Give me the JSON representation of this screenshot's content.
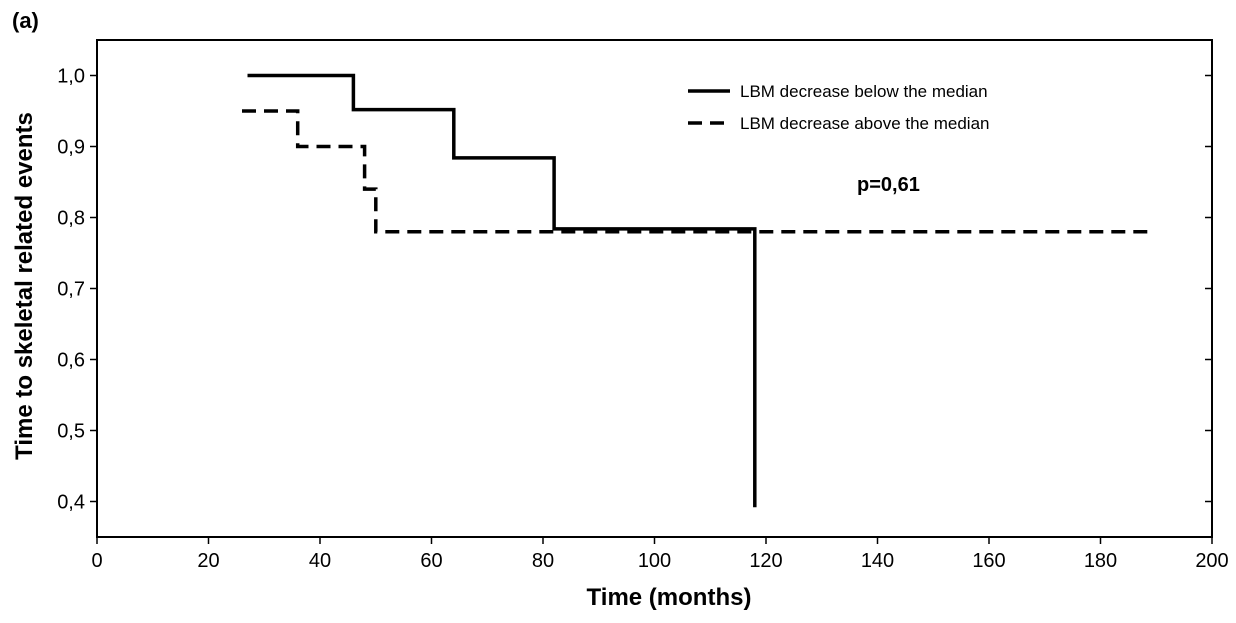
{
  "panel_label": "(a)",
  "chart_data": {
    "type": "line",
    "subtype": "kaplan-meier step curve",
    "xlabel": "Time (months)",
    "ylabel": "Time to skeletal related events",
    "xlim": [
      0,
      200
    ],
    "ylim": [
      0.35,
      1.05
    ],
    "xticks": [
      0,
      20,
      40,
      60,
      80,
      100,
      120,
      140,
      160,
      180,
      200
    ],
    "yticks": [
      0.4,
      0.5,
      0.6,
      0.7,
      0.8,
      0.9,
      1.0
    ],
    "xtick_labels": [
      "0",
      "20",
      "40",
      "60",
      "80",
      "100",
      "120",
      "140",
      "160",
      "180",
      "200"
    ],
    "ytick_labels": [
      "0,4",
      "0,5",
      "0,6",
      "0,7",
      "0,8",
      "0,9",
      "1,0"
    ],
    "grid": false,
    "legend_position": "top-right",
    "annotation": "p=0,61",
    "series": [
      {
        "name": "LBM decrease below the median",
        "line_style": "solid",
        "x": [
          27,
          46,
          46,
          64,
          64,
          82,
          82,
          118,
          118
        ],
        "y": [
          1.0,
          1.0,
          0.952,
          0.952,
          0.884,
          0.884,
          0.784,
          0.784,
          0.392
        ]
      },
      {
        "name": "LBM decrease above the median",
        "line_style": "dashed",
        "x": [
          26,
          36,
          36,
          48,
          48,
          50,
          50,
          189
        ],
        "y": [
          0.95,
          0.95,
          0.9,
          0.9,
          0.84,
          0.84,
          0.78,
          0.78
        ]
      }
    ]
  }
}
